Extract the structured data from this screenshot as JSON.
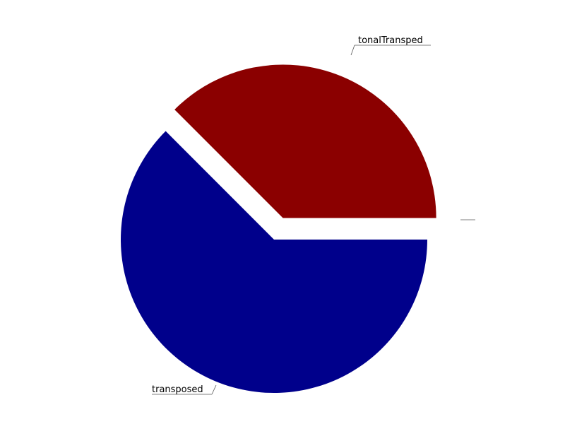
{
  "chart_data": {
    "type": "pie",
    "slices": [
      {
        "label": "tonalTransped",
        "value": 0.375,
        "color": "#8b0000",
        "exploded": true
      },
      {
        "label": "transposed",
        "value": 0.625,
        "color": "#00008b",
        "exploded": false
      }
    ],
    "empty_label": ""
  }
}
